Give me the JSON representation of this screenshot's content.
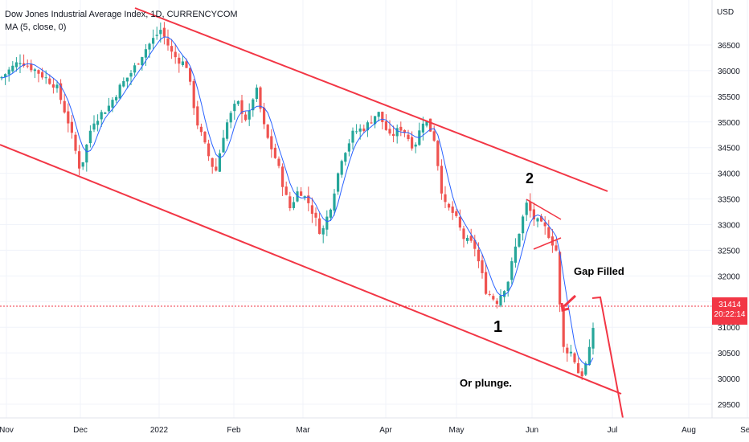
{
  "header": {
    "title": "Dow Jones Industrial Average Index, 1D, CURRENCYCOM",
    "indicator": "MA (5, close, 0)"
  },
  "price_scale": {
    "currency": "USD",
    "last_price": "31414",
    "countdown": "20:22:14"
  },
  "annotations": {
    "label_2": "2",
    "label_1": "1",
    "gap_filled": "Gap Filled",
    "plunge": "Or plunge."
  },
  "colors": {
    "up": "#26a69a",
    "down": "#ef5350",
    "ma": "#2962ff",
    "channel": "#f23645",
    "grid": "#f0f3fa"
  },
  "chart_data": {
    "type": "candlestick",
    "y_axis_ticks": [
      "36500",
      "36000",
      "35500",
      "35000",
      "34500",
      "34000",
      "33500",
      "33000",
      "32500",
      "32000",
      "31500",
      "31000",
      "30500",
      "30000",
      "29500"
    ],
    "x_axis_ticks": [
      "Nov",
      "Dec",
      "2022",
      "Feb",
      "Mar",
      "Apr",
      "May",
      "Jun",
      "Jul",
      "Aug",
      "Sep"
    ],
    "ylim": [
      29300,
      37200
    ],
    "series": [
      {
        "name": "MA (5, close, 0)",
        "values": [
          [
            "Nov",
            "35800"
          ],
          [
            "Dec",
            "34200"
          ],
          [
            "2022",
            "36450"
          ],
          [
            "Feb",
            "35500"
          ],
          [
            "Mar",
            "33700"
          ],
          [
            "Apr",
            "35100"
          ],
          [
            "May",
            "33200"
          ],
          [
            "Jun",
            "33100"
          ],
          [
            "mid-Jun",
            "30300"
          ],
          [
            "late-Jun",
            "30900"
          ]
        ]
      }
    ],
    "approx_closes": [
      {
        "x": "Nov",
        "y": 35850
      },
      {
        "x": "mid-Nov",
        "y": 36100
      },
      {
        "x": "late-Nov",
        "y": 35300
      },
      {
        "x": "Dec",
        "y": 34050
      },
      {
        "x": "mid-Dec",
        "y": 35800
      },
      {
        "x": "late-Dec",
        "y": 36300
      },
      {
        "x": "2022",
        "y": 36700
      },
      {
        "x": "mid-Jan",
        "y": 35900
      },
      {
        "x": "late-Jan",
        "y": 34200
      },
      {
        "x": "Feb",
        "y": 35400
      },
      {
        "x": "mid-Feb",
        "y": 34800
      },
      {
        "x": "late-Feb",
        "y": 33700
      },
      {
        "x": "Mar",
        "y": 33500
      },
      {
        "x": "mid-Mar",
        "y": 33000
      },
      {
        "x": "late-Mar",
        "y": 34700
      },
      {
        "x": "Apr",
        "y": 35100
      },
      {
        "x": "mid-Apr",
        "y": 34600
      },
      {
        "x": "late-Apr",
        "y": 34800
      },
      {
        "x": "May",
        "y": 33200
      },
      {
        "x": "mid-May",
        "y": 32300
      },
      {
        "x": "late-May",
        "y": 31500
      },
      {
        "x": "Jun",
        "y": 33100
      },
      {
        "x": "early-Jun",
        "y": 32900
      },
      {
        "x": "mid-Jun",
        "y": 30300
      },
      {
        "x": "late-Jun",
        "y": 31414
      }
    ],
    "drawings": [
      {
        "type": "trend-line",
        "name": "upper channel"
      },
      {
        "type": "trend-line",
        "name": "lower channel"
      },
      {
        "type": "wedge",
        "name": "pattern near 2"
      },
      {
        "type": "arrow",
        "name": "gap arrow"
      },
      {
        "type": "projection",
        "name": "plunge projection"
      }
    ]
  }
}
